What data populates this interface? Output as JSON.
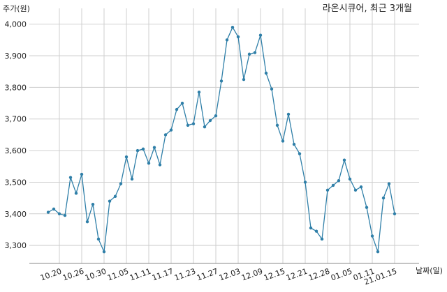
{
  "chart_data": {
    "type": "line",
    "title": "라온시큐어, 최근 3개월",
    "y_label": "주가(원)",
    "x_label": "날짜(일)",
    "categories": [
      null,
      null,
      "10.20",
      null,
      null,
      null,
      "10.26",
      null,
      null,
      null,
      "10.30",
      null,
      null,
      null,
      "11.05",
      null,
      null,
      null,
      "11.11",
      null,
      null,
      null,
      "11.17",
      null,
      null,
      null,
      "11.23",
      null,
      null,
      null,
      "11.27",
      null,
      null,
      null,
      "12.03",
      null,
      null,
      null,
      "12.09",
      null,
      null,
      null,
      "12.15",
      null,
      null,
      null,
      "12.21",
      null,
      null,
      null,
      "12.28",
      null,
      null,
      null,
      "01.05",
      null,
      null,
      null,
      "01.11",
      null,
      null,
      null,
      "21.01.15"
    ],
    "series": [
      {
        "name": "주가",
        "color": "#2f7fa8",
        "values": [
          3405,
          3415,
          3400,
          3395,
          3515,
          3465,
          3525,
          3375,
          3430,
          3320,
          3280,
          3440,
          3455,
          3495,
          3580,
          3510,
          3600,
          3605,
          3560,
          3610,
          3555,
          3650,
          3665,
          3730,
          3750,
          3680,
          3685,
          3785,
          3675,
          3695,
          3710,
          3820,
          3950,
          3990,
          3960,
          3825,
          3905,
          3910,
          3965,
          3845,
          3795,
          3680,
          3630,
          3715,
          3620,
          3590,
          3500,
          3355,
          3345,
          3320,
          3475,
          3490,
          3505,
          3570,
          3510,
          3475,
          3485,
          3420,
          3330,
          3280,
          3450,
          3495,
          3400
        ]
      }
    ],
    "ylim": [
      3243,
      4050
    ],
    "yticks": [
      {
        "value": 3300,
        "label": "3,300"
      },
      {
        "value": 3400,
        "label": "3,400"
      },
      {
        "value": 3500,
        "label": "3,500"
      },
      {
        "value": 3600,
        "label": "3,600"
      },
      {
        "value": 3700,
        "label": "3,700"
      },
      {
        "value": 3800,
        "label": "3,800"
      },
      {
        "value": 3900,
        "label": "3,900"
      },
      {
        "value": 4000,
        "label": "4,000"
      }
    ],
    "grid": true
  }
}
